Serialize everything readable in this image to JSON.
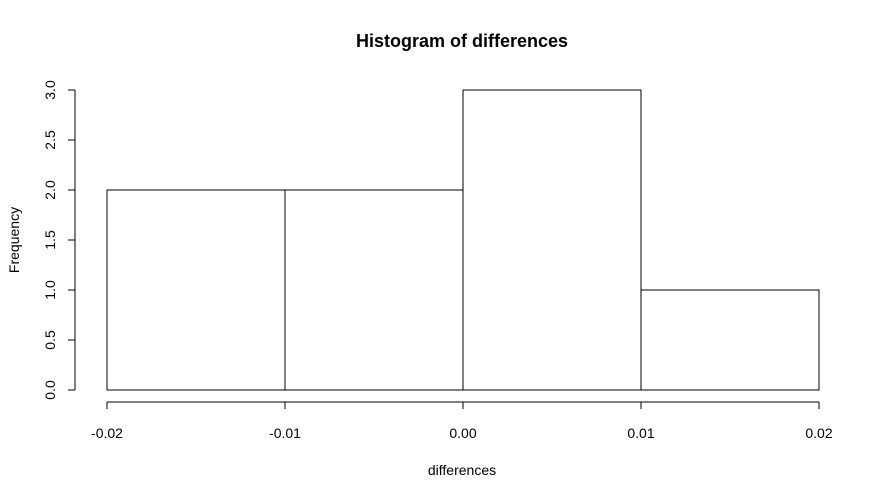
{
  "chart_data": {
    "type": "histogram",
    "title": "Histogram of differences",
    "xlabel": "differences",
    "ylabel": "Frequency",
    "bins": [
      -0.02,
      -0.01,
      0,
      0.01,
      0.02
    ],
    "counts": [
      2,
      2,
      3,
      1
    ],
    "color": "#ffffff",
    "edgecolor": "#000000",
    "xlim": [
      -0.02,
      0.02
    ],
    "ylim": [
      0,
      3
    ],
    "xticks": [
      -0.02,
      -0.01,
      {
        "value": 0,
        "label": "0.00"
      },
      0.01,
      0.02
    ],
    "yticks": [
      {
        "value": 0,
        "label": "0.0"
      },
      0.5,
      {
        "value": 1,
        "label": "1.0"
      },
      1.5,
      {
        "value": 2,
        "label": "2.0"
      },
      2.5,
      {
        "value": 3,
        "label": "3.0"
      }
    ]
  }
}
